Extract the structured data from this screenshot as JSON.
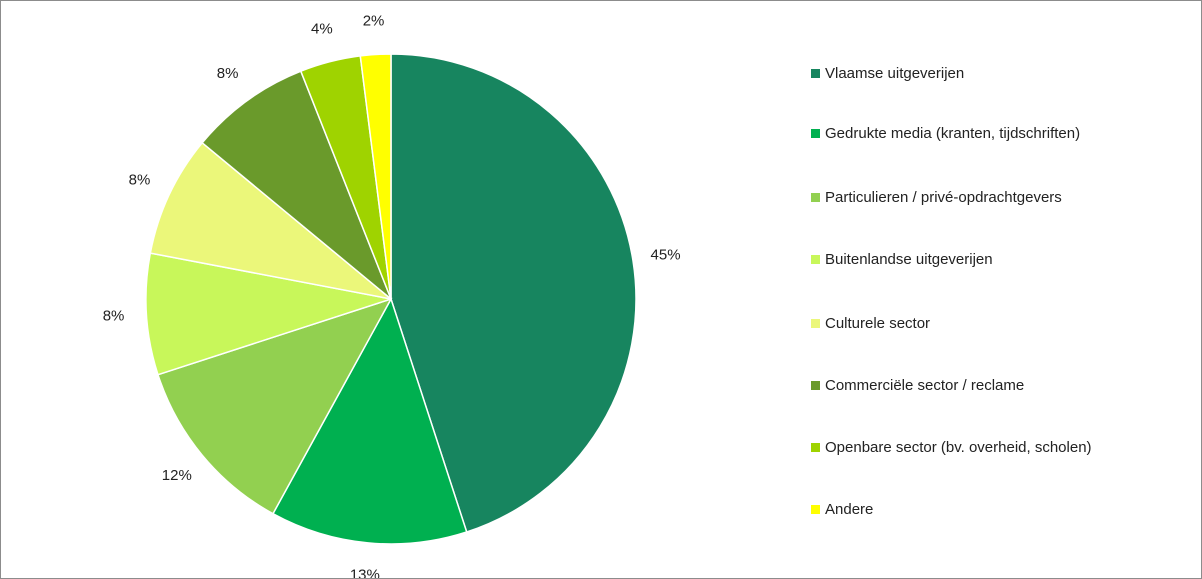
{
  "chart_data": {
    "type": "pie",
    "categories": [
      "Vlaamse uitgeverijen",
      "Gedrukte media (kranten, tijdschriften)",
      "Particulieren / privé-opdrachtgevers",
      "Buitenlandse uitgeverijen",
      "Culturele sector",
      "Commerciële sector / reclame",
      "Openbare sector (bv. overheid, scholen)",
      "Andere"
    ],
    "values": [
      45,
      13,
      12,
      8,
      8,
      8,
      4,
      2
    ],
    "value_labels": [
      "45%",
      "13%",
      "12%",
      "8%",
      "8%",
      "8%",
      "4%",
      "2%"
    ],
    "colors": [
      "#17855f",
      "#00b050",
      "#92d050",
      "#c8f75a",
      "#ebf77a",
      "#6a9a2b",
      "#9fd300",
      "#ffff00"
    ],
    "legend": "right"
  }
}
